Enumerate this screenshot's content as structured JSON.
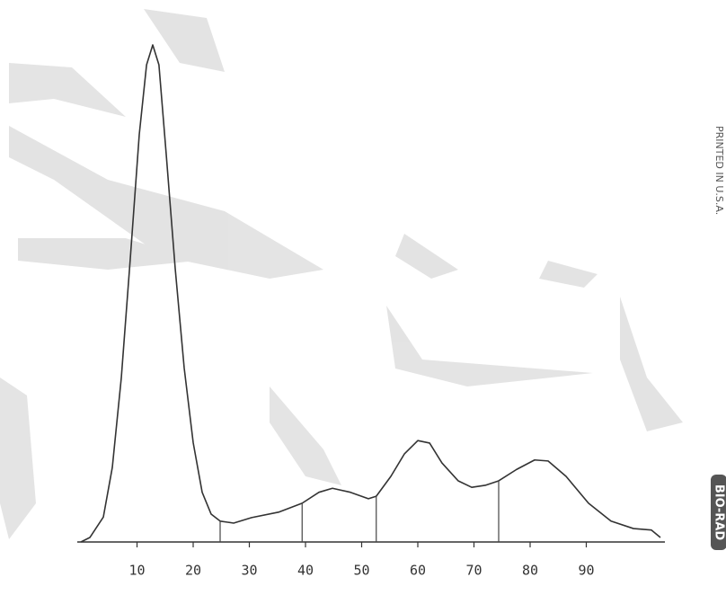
{
  "chart_data": {
    "type": "line",
    "x": [
      0,
      1.6,
      4,
      5.6,
      7.2,
      8.8,
      10.4,
      11.7,
      12.8,
      13.9,
      15.2,
      16.8,
      18.4,
      20,
      21.6,
      23.2,
      24.8,
      27.2,
      30.4,
      35.2,
      39.4,
      42.4,
      44.8,
      48,
      51.2,
      52.6,
      55.2,
      57.6,
      60,
      62.1,
      64.3,
      67.2,
      69.6,
      72,
      74.4,
      77.6,
      80.8,
      83.2,
      86.4,
      90.4,
      94.4,
      98.4,
      101.6,
      103.2
    ],
    "series": [
      {
        "color": "#333333",
        "values": [
          0,
          0.9,
          5,
          15,
          33,
          57,
          82,
          96,
          100,
          96,
          78,
          55,
          35,
          20,
          10,
          5.6,
          4.2,
          3.8,
          4.9,
          6,
          7.8,
          10,
          10.8,
          10,
          8.7,
          9.2,
          13.2,
          17.7,
          20.4,
          19.9,
          15.9,
          12.3,
          11,
          11.4,
          12.3,
          14.6,
          16.5,
          16.3,
          13.2,
          7.8,
          4.2,
          2.7,
          2.4,
          0.9
        ]
      }
    ],
    "dividers": [
      24.8,
      39.4,
      52.6,
      74.4
    ],
    "xlim": [
      0,
      104
    ],
    "ylim": [
      0,
      100
    ],
    "xticks": [
      10,
      20,
      30,
      40,
      50,
      60,
      70,
      80,
      90
    ],
    "side_text": "PRINTED IN U.S.A.",
    "brand": "BIO-RAD"
  }
}
